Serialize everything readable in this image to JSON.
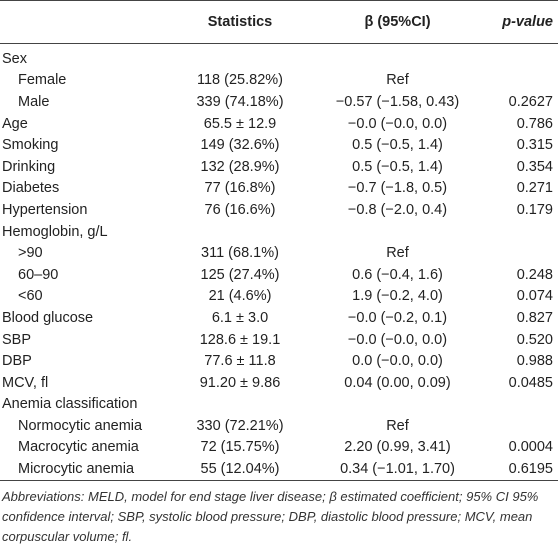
{
  "table": {
    "header": [
      "Statistics",
      "β (95%CI)",
      "p-value"
    ],
    "rows": [
      [
        "Sex"
      ],
      [
        "Female",
        "118 (25.82%)",
        "Ref"
      ],
      [
        "Male",
        "339 (74.18%)",
        "−0.57 (−1.58, 0.43)",
        "0.2627"
      ],
      [
        "Age",
        "65.5 ± 12.9",
        "−0.0 (−0.0, 0.0)",
        "0.786"
      ],
      [
        "Smoking",
        "149 (32.6%)",
        "0.5 (−0.5, 1.4)",
        "0.315"
      ],
      [
        "Drinking",
        "132 (28.9%)",
        "0.5 (−0.5, 1.4)",
        "0.354"
      ],
      [
        "Diabetes",
        "77 (16.8%)",
        "−0.7 (−1.8, 0.5)",
        "0.271"
      ],
      [
        "Hypertension",
        "76 (16.6%)",
        "−0.8 (−2.0, 0.4)",
        "0.179"
      ],
      [
        "Hemoglobin, g/L"
      ],
      [
        ">90",
        "311 (68.1%)",
        "Ref"
      ],
      [
        "60–90",
        "125 (27.4%)",
        "0.6 (−0.4, 1.6)",
        "0.248"
      ],
      [
        "<60",
        "21 (4.6%)",
        "1.9 (−0.2, 4.0)",
        "0.074"
      ],
      [
        "Blood glucose",
        "6.1 ± 3.0",
        "−0.0 (−0.2, 0.1)",
        "0.827"
      ],
      [
        "SBP",
        "128.6 ± 19.1",
        "−0.0 (−0.0, 0.0)",
        "0.520"
      ],
      [
        "DBP",
        "77.6 ± 11.8",
        "0.0 (−0.0, 0.0)",
        "0.988"
      ],
      [
        "MCV, fl",
        "91.20 ± 9.86",
        "0.04 (0.00, 0.09)",
        "0.0485"
      ],
      [
        "Anemia classification"
      ],
      [
        "Normocytic anemia",
        "330 (72.21%)",
        "Ref"
      ],
      [
        "Macrocytic anemia",
        "72 (15.75%)",
        "2.20 (0.99, 3.41)",
        "0.0004"
      ],
      [
        "Microcytic anemia",
        "55 (12.04%)",
        "0.34 (−1.01, 1.70)",
        "0.6195"
      ]
    ],
    "footnote": "Abbreviations: MELD, model for end stage liver disease; β estimated coefficient; 95% CI 95% confidence interval; SBP, systolic blood pressure; DBP, diastolic blood pressure; MCV, mean corpuscular volume; fl."
  }
}
